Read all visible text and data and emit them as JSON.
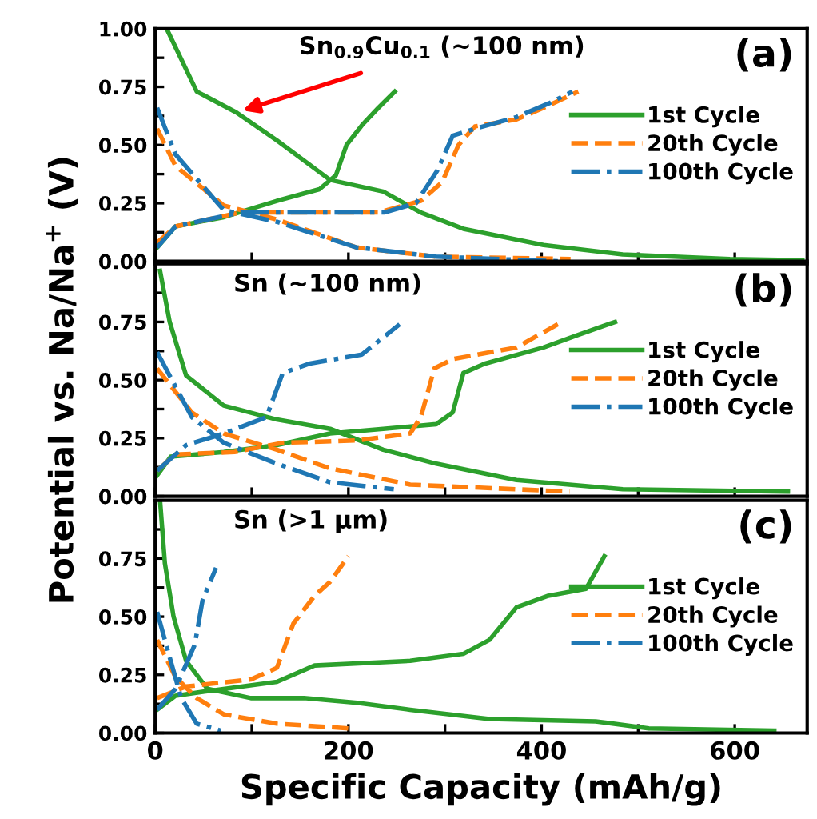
{
  "chart_data": [
    {
      "type": "line",
      "tick_labels": "y",
      "legend": "center right",
      "grid": false,
      "xlim": [
        0,
        675
      ],
      "ylim": [
        0,
        1
      ],
      "xticks": [
        0,
        {
          "value": 100,
          "label": null
        },
        200,
        {
          "value": 300,
          "label": null
        },
        400,
        {
          "value": 500,
          "label": null
        },
        600
      ],
      "yticks": [
        {
          "value": 0,
          "label": "0.00"
        },
        {
          "value": 0.125,
          "label": null
        },
        {
          "value": 0.25,
          "label": "0.25"
        },
        {
          "value": 0.375,
          "label": null
        },
        {
          "value": 0.5,
          "label": "0.50"
        },
        {
          "value": 0.625,
          "label": null
        },
        {
          "value": 0.75,
          "label": "0.75"
        },
        {
          "value": 0.875,
          "label": null
        },
        {
          "value": 1,
          "label": "1.00"
        }
      ],
      "annotations": [
        {
          "text": "Sn$_{0.9}$Cu$_{0.1}$ (~100 nm)",
          "x": 84,
          "y": 0.64
        },
        "(a)"
      ],
      "series": [
        {
          "name": "1st Cycle",
          "color": "#2ca02c",
          "line_style": "solid",
          "x": [
            13,
            43,
            84,
            126,
            181,
            236,
            275,
            319,
            402,
            484,
            595,
            670,
            null,
            2,
            21,
            71,
            126,
            170,
            187,
            198,
            215,
            231,
            248
          ],
          "values": [
            0.99,
            0.73,
            0.64,
            0.52,
            0.35,
            0.3,
            0.21,
            0.14,
            0.07,
            0.03,
            0.01,
            0.005,
            null,
            0.06,
            0.15,
            0.19,
            0.26,
            0.31,
            0.37,
            0.5,
            0.59,
            0.66,
            0.73
          ]
        },
        {
          "name": "20th Cycle",
          "color": "#ff7f0e",
          "line_style": "dashed",
          "x": [
            2,
            21,
            71,
            126,
            208,
            291,
            430,
            null,
            2,
            21,
            88,
            154,
            231,
            275,
            297,
            314,
            331,
            374,
            402,
            438
          ],
          "values": [
            0.57,
            0.41,
            0.24,
            0.18,
            0.06,
            0.02,
            0.01,
            null,
            0.08,
            0.15,
            0.21,
            0.21,
            0.21,
            0.26,
            0.34,
            0.5,
            0.58,
            0.61,
            0.66,
            0.73
          ]
        },
        {
          "name": "100th Cycle",
          "color": "#1f77b4",
          "line_style": "dashdot",
          "x": [
            2,
            21,
            71,
            126,
            208,
            291,
            418,
            null,
            2,
            21,
            88,
            154,
            237,
            270,
            292,
            308,
            331,
            374,
            408,
            432
          ],
          "values": [
            0.66,
            0.46,
            0.22,
            0.17,
            0.06,
            0.02,
            0.0,
            null,
            0.06,
            0.15,
            0.21,
            0.21,
            0.21,
            0.25,
            0.39,
            0.54,
            0.57,
            0.62,
            0.68,
            0.73
          ]
        }
      ]
    },
    {
      "type": "line",
      "tick_labels": "y",
      "legend": "center right",
      "grid": false,
      "xlim": [
        0,
        675
      ],
      "ylim": [
        0,
        1
      ],
      "ylabel": "Potential vs. Na/Na$^{+}$ (V)",
      "xticks": [
        0,
        {
          "value": 100,
          "label": null
        },
        200,
        {
          "value": 300,
          "label": null
        },
        400,
        {
          "value": 500,
          "label": null
        },
        600
      ],
      "yticks": [
        {
          "value": 0,
          "label": "0.00"
        },
        {
          "value": 0.125,
          "label": null
        },
        {
          "value": 0.25,
          "label": "0.25"
        },
        {
          "value": 0.375,
          "label": null
        },
        {
          "value": 0.5,
          "label": "0.50"
        },
        {
          "value": 0.625,
          "label": null
        },
        {
          "value": 0.75,
          "label": "0.75"
        },
        {
          "value": 0.875,
          "label": null
        }
      ],
      "annotations": [
        "Sn (~100 nm)",
        "(b)"
      ],
      "series": [
        {
          "name": "1st Cycle",
          "color": "#2ca02c",
          "line_style": "solid",
          "x": [
            5,
            15,
            32,
            71,
            126,
            181,
            236,
            291,
            374,
            484,
            655,
            null,
            2,
            16,
            71,
            126,
            181,
            236,
            291,
            308,
            319,
            341,
            402,
            435,
            476
          ],
          "values": [
            0.97,
            0.75,
            0.52,
            0.39,
            0.33,
            0.29,
            0.2,
            0.14,
            0.07,
            0.03,
            0.02,
            null,
            0.09,
            0.17,
            0.19,
            0.22,
            0.27,
            0.29,
            0.31,
            0.36,
            0.53,
            0.57,
            0.64,
            0.69,
            0.75
          ]
        },
        {
          "name": "20th Cycle",
          "color": "#ff7f0e",
          "line_style": "dashed",
          "x": [
            2,
            38,
            71,
            126,
            181,
            264,
            429,
            null,
            2,
            21,
            82,
            132,
            209,
            264,
            275,
            289,
            308,
            374,
            421
          ],
          "values": [
            0.55,
            0.36,
            0.27,
            0.2,
            0.12,
            0.05,
            0.02,
            null,
            0.11,
            0.18,
            0.19,
            0.23,
            0.24,
            0.27,
            0.34,
            0.55,
            0.59,
            0.64,
            0.75
          ]
        },
        {
          "name": "100th Cycle",
          "color": "#1f77b4",
          "line_style": "dashdot",
          "x": [
            2,
            38,
            71,
            126,
            181,
            247,
            null,
            2,
            32,
            71,
            115,
            132,
            159,
            214,
            253
          ],
          "values": [
            0.62,
            0.34,
            0.23,
            0.14,
            0.06,
            0.03,
            null,
            0.11,
            0.22,
            0.27,
            0.34,
            0.53,
            0.57,
            0.61,
            0.74
          ]
        }
      ]
    },
    {
      "type": "line",
      "legend": "center right",
      "grid": false,
      "xlim": [
        0,
        675
      ],
      "ylim": [
        0,
        1
      ],
      "xlabel": "Specific Capacity (mAh/g)",
      "xticks": [
        0,
        {
          "value": 100,
          "label": null
        },
        200,
        {
          "value": 300,
          "label": null
        },
        400,
        {
          "value": 500,
          "label": null
        },
        600
      ],
      "yticks": [
        {
          "value": 0,
          "label": "0.00"
        },
        {
          "value": 0.125,
          "label": null
        },
        {
          "value": 0.25,
          "label": "0.25"
        },
        {
          "value": 0.375,
          "label": null
        },
        {
          "value": 0.5,
          "label": "0.50"
        },
        {
          "value": 0.625,
          "label": null
        },
        {
          "value": 0.75,
          "label": "0.75"
        },
        {
          "value": 0.875,
          "label": null
        }
      ],
      "annotations": [
        "Sn (>1 μm)",
        "(c)"
      ],
      "series": [
        {
          "name": "1st Cycle",
          "color": "#2ca02c",
          "line_style": "solid",
          "x": [
            5,
            10,
            19,
            32,
            54,
            99,
            154,
            209,
            264,
            346,
            456,
            511,
            641,
            null,
            2,
            21,
            54,
            126,
            165,
            264,
            319,
            346,
            374,
            407,
            446,
            465
          ],
          "values": [
            1.0,
            0.73,
            0.5,
            0.31,
            0.19,
            0.15,
            0.15,
            0.13,
            0.1,
            0.06,
            0.05,
            0.02,
            0.01,
            null,
            0.1,
            0.16,
            0.18,
            0.22,
            0.29,
            0.31,
            0.34,
            0.4,
            0.54,
            0.59,
            0.62,
            0.76
          ]
        },
        {
          "name": "20th Cycle",
          "color": "#ff7f0e",
          "line_style": "dashed",
          "x": [
            2,
            21,
            43,
            71,
            126,
            200,
            null,
            2,
            32,
            99,
            126,
            143,
            165,
            181,
            200
          ],
          "values": [
            0.4,
            0.24,
            0.15,
            0.08,
            0.04,
            0.02,
            null,
            0.15,
            0.2,
            0.23,
            0.28,
            0.47,
            0.59,
            0.65,
            0.76
          ]
        },
        {
          "name": "100th Cycle",
          "color": "#1f77b4",
          "line_style": "dashdot",
          "x": [
            2,
            16,
            27,
            43,
            68,
            null,
            2,
            21,
            41,
            49,
            63
          ],
          "values": [
            0.52,
            0.31,
            0.15,
            0.04,
            0.01,
            null,
            0.1,
            0.19,
            0.38,
            0.57,
            0.71
          ]
        }
      ]
    }
  ]
}
